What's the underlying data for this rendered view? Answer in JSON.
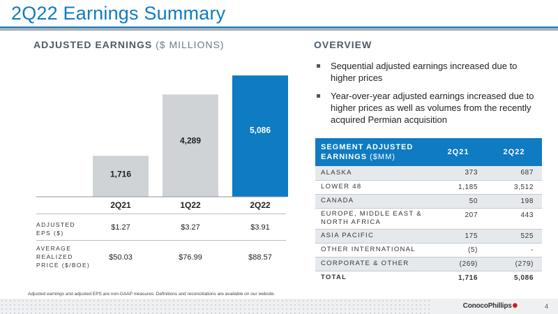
{
  "title": "2Q22 Earnings Summary",
  "chart_section": {
    "heading_bold": "ADJUSTED EARNINGS",
    "heading_light": "($ MILLIONS)"
  },
  "overview_section": {
    "heading": "OVERVIEW",
    "bullets": [
      "Sequential adjusted earnings increased due to higher prices",
      "Year-over-year adjusted earnings increased due to higher prices as well as volumes from the recently acquired Permian acquisition"
    ]
  },
  "colors": {
    "accent": "#0f7bc2",
    "bar_gray": "#cfd3d6",
    "bar_highlight": "#0f7bc2"
  },
  "chart_data": {
    "type": "bar",
    "title": "ADJUSTED EARNINGS ($ MILLIONS)",
    "categories": [
      "2Q21",
      "1Q22",
      "2Q22"
    ],
    "values": [
      1716,
      4289,
      5086
    ],
    "value_labels": [
      "1,716",
      "4,289",
      "5,086"
    ],
    "highlight_index": 2,
    "ylim": [
      0,
      5500
    ],
    "grid": false
  },
  "bar_table": {
    "rows": [
      {
        "label_line1": "ADJUSTED",
        "label_line2": "EPS ($)",
        "label_line3": "",
        "values": [
          "$1.27",
          "$3.27",
          "$3.91"
        ]
      },
      {
        "label_line1": "AVERAGE",
        "label_line2": "REALIZED",
        "label_line3": "PRICE ($/BOE)",
        "values": [
          "$50.03",
          "$76.99",
          "$88.57"
        ]
      }
    ]
  },
  "segment_table": {
    "header_label_bold": "SEGMENT ADJUSTED EARNINGS",
    "header_label_light": "($MM)",
    "col1": "2Q21",
    "col2": "2Q22",
    "rows": [
      {
        "label": "ALASKA",
        "v1": "373",
        "v2": "687"
      },
      {
        "label": "LOWER 48",
        "v1": "1,185",
        "v2": "3,512"
      },
      {
        "label": "CANADA",
        "v1": "50",
        "v2": "198"
      },
      {
        "label": "EUROPE, MIDDLE EAST & NORTH AFRICA",
        "v1": "207",
        "v2": "443"
      },
      {
        "label": "ASIA PACIFIC",
        "v1": "175",
        "v2": "525"
      },
      {
        "label": "OTHER INTERNATIONAL",
        "v1": "(5)",
        "v2": "-"
      },
      {
        "label": "CORPORATE & OTHER",
        "v1": "(269)",
        "v2": "(279)"
      }
    ],
    "total": {
      "label": "TOTAL",
      "v1": "1,716",
      "v2": "5,086"
    }
  },
  "footnote": "Adjusted earnings and adjusted EPS are non-GAAP measures. Definitions and reconciliations are available on our website.",
  "logo_text": "ConocoPhillips",
  "page_number": "4"
}
